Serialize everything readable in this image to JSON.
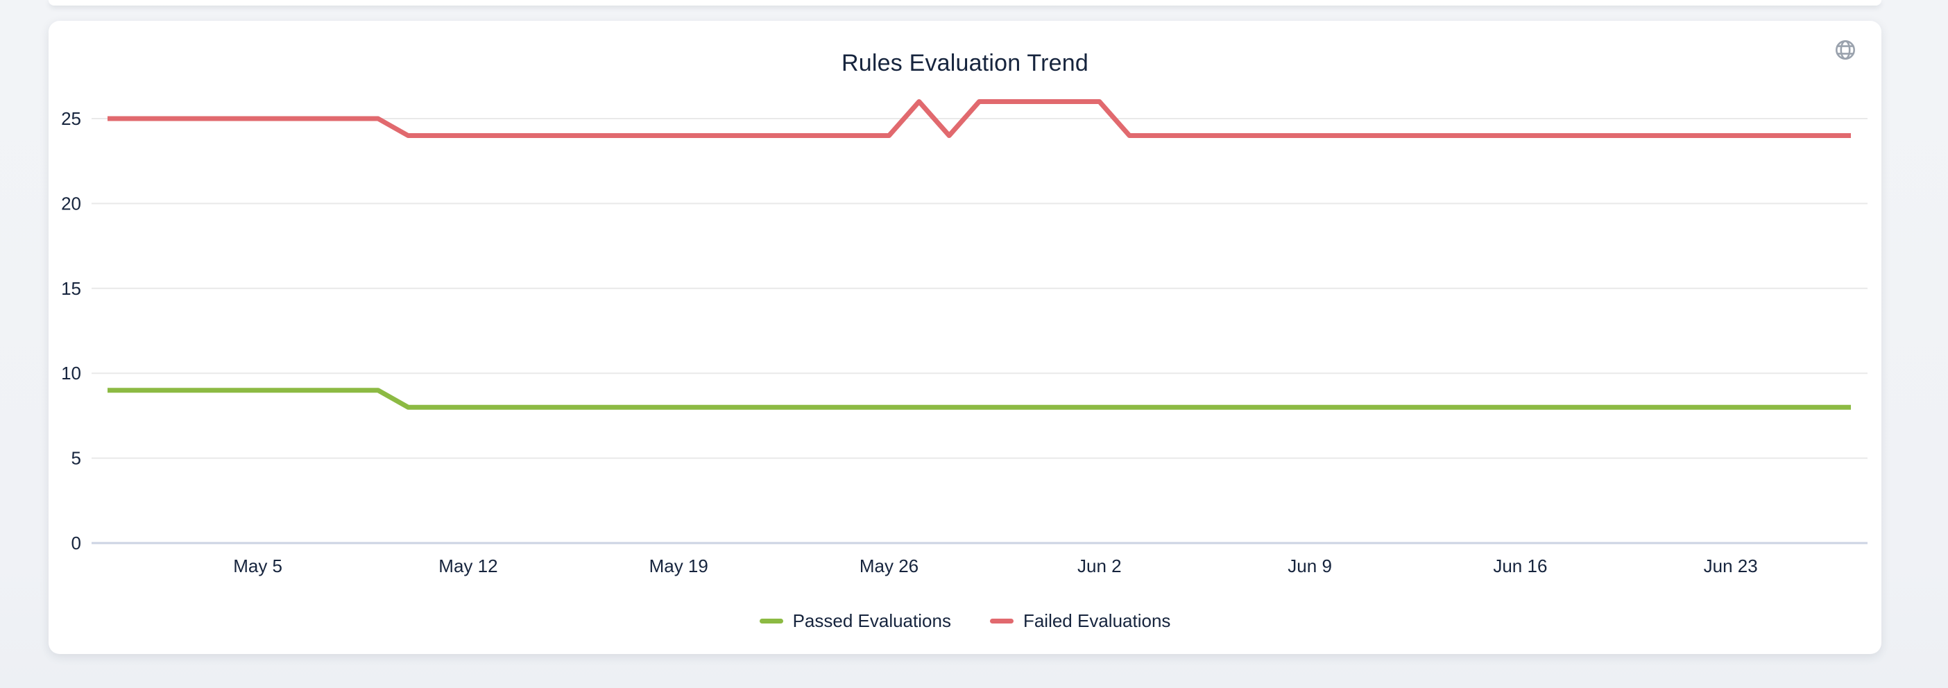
{
  "card": {
    "title": "Rules Evaluation Trend"
  },
  "icons": {
    "globe": "globe-icon"
  },
  "colors": {
    "passed_line": "#8cba43",
    "failed_line": "#e1696e",
    "grid_line": "#e9e9e9",
    "axis_line": "#ccd3e3",
    "text": "#16243d",
    "globe_icon": "#9aa2ad",
    "card_background": "#ffffff",
    "page_background": "#f1f3f7"
  },
  "chart_data": {
    "type": "line",
    "title": "Rules Evaluation Trend",
    "xlabel": "",
    "ylabel": "",
    "grid": "horizontal",
    "legend_position": "bottom",
    "y_ticks": [
      0,
      5,
      10,
      15,
      20,
      25
    ],
    "ylim": [
      0,
      26.5
    ],
    "x": [
      "Apr 30",
      "May 1",
      "May 2",
      "May 3",
      "May 4",
      "May 5",
      "May 6",
      "May 7",
      "May 8",
      "May 9",
      "May 10",
      "May 11",
      "May 12",
      "May 13",
      "May 14",
      "May 15",
      "May 16",
      "May 17",
      "May 18",
      "May 19",
      "May 20",
      "May 21",
      "May 22",
      "May 23",
      "May 24",
      "May 25",
      "May 26",
      "May 27",
      "May 28",
      "May 29",
      "May 30",
      "May 31",
      "Jun 1",
      "Jun 2",
      "Jun 3",
      "Jun 4",
      "Jun 5",
      "Jun 6",
      "Jun 7",
      "Jun 8",
      "Jun 9",
      "Jun 10",
      "Jun 11",
      "Jun 12",
      "Jun 13",
      "Jun 14",
      "Jun 15",
      "Jun 16",
      "Jun 17",
      "Jun 18",
      "Jun 19",
      "Jun 20",
      "Jun 21",
      "Jun 22",
      "Jun 23",
      "Jun 24",
      "Jun 25",
      "Jun 26",
      "Jun 27"
    ],
    "x_tick_labels": [
      "May 5",
      "May 12",
      "May 19",
      "May 26",
      "Jun 2",
      "Jun 9",
      "Jun 16",
      "Jun 23"
    ],
    "x_tick_indices": [
      5,
      12,
      19,
      26,
      33,
      40,
      47,
      54
    ],
    "series": [
      {
        "name": "Passed Evaluations",
        "color": "#8cba43",
        "values": [
          9,
          9,
          9,
          9,
          9,
          9,
          9,
          9,
          9,
          9,
          8,
          8,
          8,
          8,
          8,
          8,
          8,
          8,
          8,
          8,
          8,
          8,
          8,
          8,
          8,
          8,
          8,
          8,
          8,
          8,
          8,
          8,
          8,
          8,
          8,
          8,
          8,
          8,
          8,
          8,
          8,
          8,
          8,
          8,
          8,
          8,
          8,
          8,
          8,
          8,
          8,
          8,
          8,
          8,
          8,
          8,
          8,
          8,
          8
        ]
      },
      {
        "name": "Failed Evaluations",
        "color": "#e1696e",
        "values": [
          25,
          25,
          25,
          25,
          25,
          25,
          25,
          25,
          25,
          25,
          24,
          24,
          24,
          24,
          24,
          24,
          24,
          24,
          24,
          24,
          24,
          24,
          24,
          24,
          24,
          24,
          24,
          26,
          24,
          26,
          26,
          26,
          26,
          26,
          24,
          24,
          24,
          24,
          24,
          24,
          24,
          24,
          24,
          24,
          24,
          24,
          24,
          24,
          24,
          24,
          24,
          24,
          24,
          24,
          24,
          24,
          24,
          24,
          24
        ]
      }
    ]
  }
}
